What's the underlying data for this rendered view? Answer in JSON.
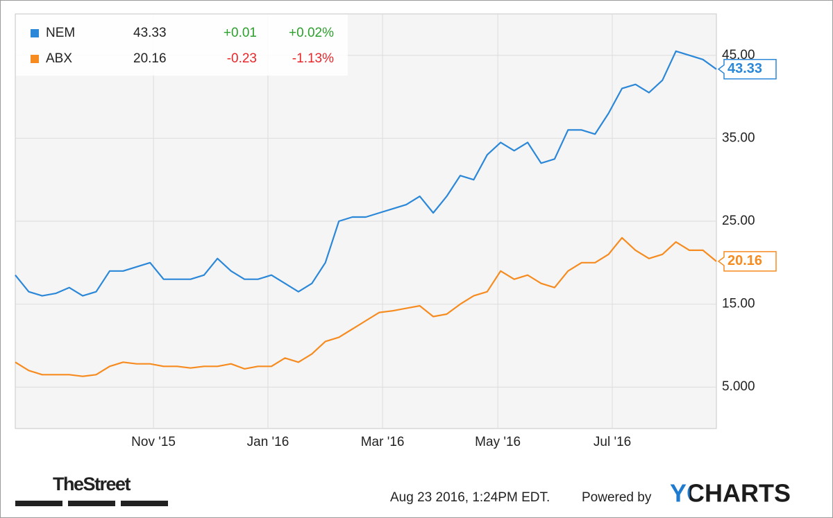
{
  "chart_data": {
    "type": "line",
    "series": [
      {
        "name": "NEM",
        "color": "#2b87d8",
        "change": "+0.01",
        "change_pct": "+0.02%",
        "change_color": "#2ca02c",
        "values": [
          18.5,
          16.5,
          16,
          16.3,
          17,
          16,
          16.5,
          19,
          19,
          19.5,
          20,
          18,
          18,
          18,
          18.5,
          20.5,
          19,
          18,
          18,
          18.5,
          17.5,
          16.5,
          17.5,
          20,
          25,
          25.5,
          25.5,
          26,
          26.5,
          27,
          28,
          26,
          28,
          30.5,
          30,
          33,
          34.5,
          33.5,
          34.5,
          32,
          32.5,
          36,
          36,
          35.5,
          38,
          41,
          41.5,
          40.5,
          42,
          45.5,
          45,
          44.5,
          43.33
        ]
      },
      {
        "name": "ABX",
        "color": "#f68b1f",
        "change": "-0.23",
        "change_pct": "-1.13%",
        "change_color": "#e8262a",
        "values": [
          8,
          7,
          6.5,
          6.5,
          6.5,
          6.3,
          6.5,
          7.5,
          8,
          7.8,
          7.8,
          7.5,
          7.5,
          7.3,
          7.5,
          7.5,
          7.8,
          7.2,
          7.5,
          7.5,
          8.5,
          8,
          9,
          10.5,
          11,
          12,
          13,
          14,
          14.2,
          14.5,
          14.8,
          13.5,
          13.8,
          15,
          16,
          16.5,
          19,
          18,
          18.5,
          17.5,
          17,
          19,
          20,
          20,
          21,
          23,
          21.5,
          20.5,
          21,
          22.5,
          21.5,
          21.5,
          20.16
        ]
      }
    ],
    "xlim": [
      0,
      52
    ],
    "xticks": [
      {
        "value": 10.25,
        "label": "Nov '15"
      },
      {
        "value": 18.74,
        "label": "Jan '16"
      },
      {
        "value": 27.24,
        "label": "Mar '16"
      },
      {
        "value": 35.79,
        "label": "May '16"
      },
      {
        "value": 44.28,
        "label": "Jul '16"
      }
    ],
    "ylim": [
      0,
      50
    ],
    "yticks": [
      {
        "value": 5,
        "label": "5.000"
      },
      {
        "value": 15,
        "label": "15.00"
      },
      {
        "value": 25,
        "label": "25.00"
      },
      {
        "value": 35,
        "label": "35.00"
      },
      {
        "value": 45,
        "label": "45.00"
      }
    ],
    "grid": true
  },
  "footer": {
    "logo": "TheStreet",
    "timestamp": "Aug 23 2016, 1:24PM EDT.",
    "powered": "Powered by",
    "brand": "YCHARTS"
  }
}
